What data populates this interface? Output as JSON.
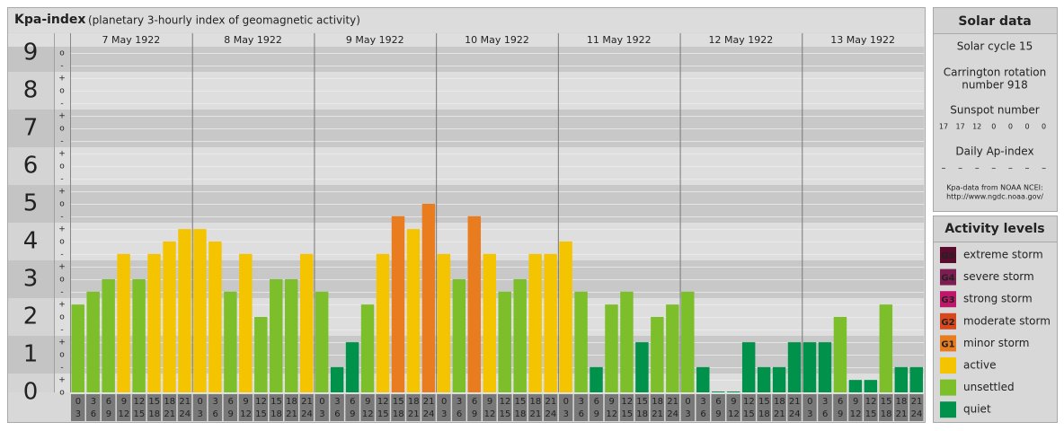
{
  "chart_data": {
    "type": "bar",
    "title": "Kpa-index",
    "subtitle": "(planetary 3-hourly index of geomagnetic activity)",
    "days": [
      "7 May 1922",
      "8 May 1922",
      "9 May 1922",
      "10 May 1922",
      "11 May 1922",
      "12 May 1922",
      "13 May 1922"
    ],
    "hours": [
      "0",
      "3",
      "6",
      "9",
      "12",
      "15",
      "18",
      "21",
      "24"
    ],
    "values": [
      [
        2.33,
        2.67,
        3,
        3.67,
        3,
        3.67,
        4,
        4.33
      ],
      [
        4.33,
        4,
        2.67,
        3.67,
        2,
        3,
        3,
        3.67
      ],
      [
        2.67,
        0.67,
        1.33,
        2.33,
        3.67,
        4.67,
        4.33,
        5
      ],
      [
        3.67,
        3,
        4.67,
        3.67,
        2.67,
        3,
        3.67,
        3.67
      ],
      [
        4,
        2.67,
        0.67,
        2.33,
        2.67,
        1.33,
        2,
        2.33
      ],
      [
        2.67,
        0.67,
        0,
        0,
        1.33,
        0.67,
        0.67,
        1.33
      ],
      [
        1.33,
        1.33,
        2,
        0.33,
        0.33,
        2.33,
        0.67,
        0.67
      ]
    ],
    "colors": [
      [
        "#7dbf2a",
        "#7dbf2a",
        "#7dbf2a",
        "#f5c400",
        "#7dbf2a",
        "#f5c400",
        "#f5c400",
        "#f5c400"
      ],
      [
        "#f5c400",
        "#f5c400",
        "#7dbf2a",
        "#f5c400",
        "#7dbf2a",
        "#7dbf2a",
        "#7dbf2a",
        "#f5c400"
      ],
      [
        "#7dbf2a",
        "#00924a",
        "#00924a",
        "#7dbf2a",
        "#f5c400",
        "#e97c1e",
        "#f5c400",
        "#e97c1e"
      ],
      [
        "#f5c400",
        "#7dbf2a",
        "#e97c1e",
        "#f5c400",
        "#7dbf2a",
        "#7dbf2a",
        "#f5c400",
        "#f5c400"
      ],
      [
        "#f5c400",
        "#7dbf2a",
        "#00924a",
        "#7dbf2a",
        "#7dbf2a",
        "#00924a",
        "#7dbf2a",
        "#7dbf2a"
      ],
      [
        "#7dbf2a",
        "#00924a",
        "#00924a",
        "#00924a",
        "#00924a",
        "#00924a",
        "#00924a",
        "#00924a"
      ],
      [
        "#00924a",
        "#00924a",
        "#7dbf2a",
        "#00924a",
        "#00924a",
        "#7dbf2a",
        "#00924a",
        "#00924a"
      ]
    ],
    "ylim": [
      0,
      9
    ],
    "yticks": [
      0,
      1,
      2,
      3,
      4,
      5,
      6,
      7,
      8,
      9
    ],
    "yminorticks": [
      {
        "value": 0,
        "label": "o"
      },
      {
        "value": 0.33,
        "label": "+"
      },
      {
        "value": 0.67,
        "label": "-"
      },
      {
        "value": 1,
        "label": "o"
      },
      {
        "value": 1.33,
        "label": "+"
      },
      {
        "value": 1.67,
        "label": "-"
      },
      {
        "value": 2,
        "label": "o"
      },
      {
        "value": 2.33,
        "label": "+"
      },
      {
        "value": 2.67,
        "label": "-"
      },
      {
        "value": 3,
        "label": "o"
      },
      {
        "value": 3.33,
        "label": "+"
      },
      {
        "value": 3.67,
        "label": "-"
      },
      {
        "value": 4,
        "label": "o"
      },
      {
        "value": 4.33,
        "label": "+"
      },
      {
        "value": 4.67,
        "label": "-"
      },
      {
        "value": 5,
        "label": "o"
      },
      {
        "value": 5.33,
        "label": "+"
      },
      {
        "value": 5.67,
        "label": "-"
      },
      {
        "value": 6,
        "label": "o"
      },
      {
        "value": 6.33,
        "label": "+"
      },
      {
        "value": 6.67,
        "label": "-"
      },
      {
        "value": 7,
        "label": "o"
      },
      {
        "value": 7.33,
        "label": "+"
      },
      {
        "value": 7.67,
        "label": "-"
      },
      {
        "value": 8,
        "label": "o"
      },
      {
        "value": 8.33,
        "label": "+"
      },
      {
        "value": 8.67,
        "label": "-"
      },
      {
        "value": 9,
        "label": "o"
      }
    ]
  },
  "solar_data": {
    "title": "Solar data",
    "solar_cycle": "Solar cycle 15",
    "carrington": [
      "Carrington rotation",
      "number 918"
    ],
    "sunspot_title": "Sunspot number",
    "sunspot_numbers": [
      17,
      17,
      12,
      0,
      0,
      0,
      0
    ],
    "ap_title": "Daily Ap-index",
    "ap_index": [
      "–",
      "–",
      "–",
      "–",
      "–",
      "–",
      "–"
    ],
    "source": [
      "Kpa-data from NOAA NCEI:",
      "http://www.ngdc.noaa.gov/"
    ]
  },
  "activity_levels": {
    "title": "Activity levels",
    "items": [
      {
        "badge": "G5",
        "name": "extreme storm",
        "color": "#5c0a2e"
      },
      {
        "badge": "G4",
        "name": "severe storm",
        "color": "#7d1d52"
      },
      {
        "badge": "G3",
        "name": "strong storm",
        "color": "#c0166a"
      },
      {
        "badge": "G2",
        "name": "moderate storm",
        "color": "#d9471d"
      },
      {
        "badge": "G1",
        "name": "minor storm",
        "color": "#e97c1e"
      },
      {
        "name": "active",
        "color": "#f5c400"
      },
      {
        "name": "unsettled",
        "color": "#7dbf2a"
      },
      {
        "name": "quiet",
        "color": "#00924a"
      }
    ]
  }
}
